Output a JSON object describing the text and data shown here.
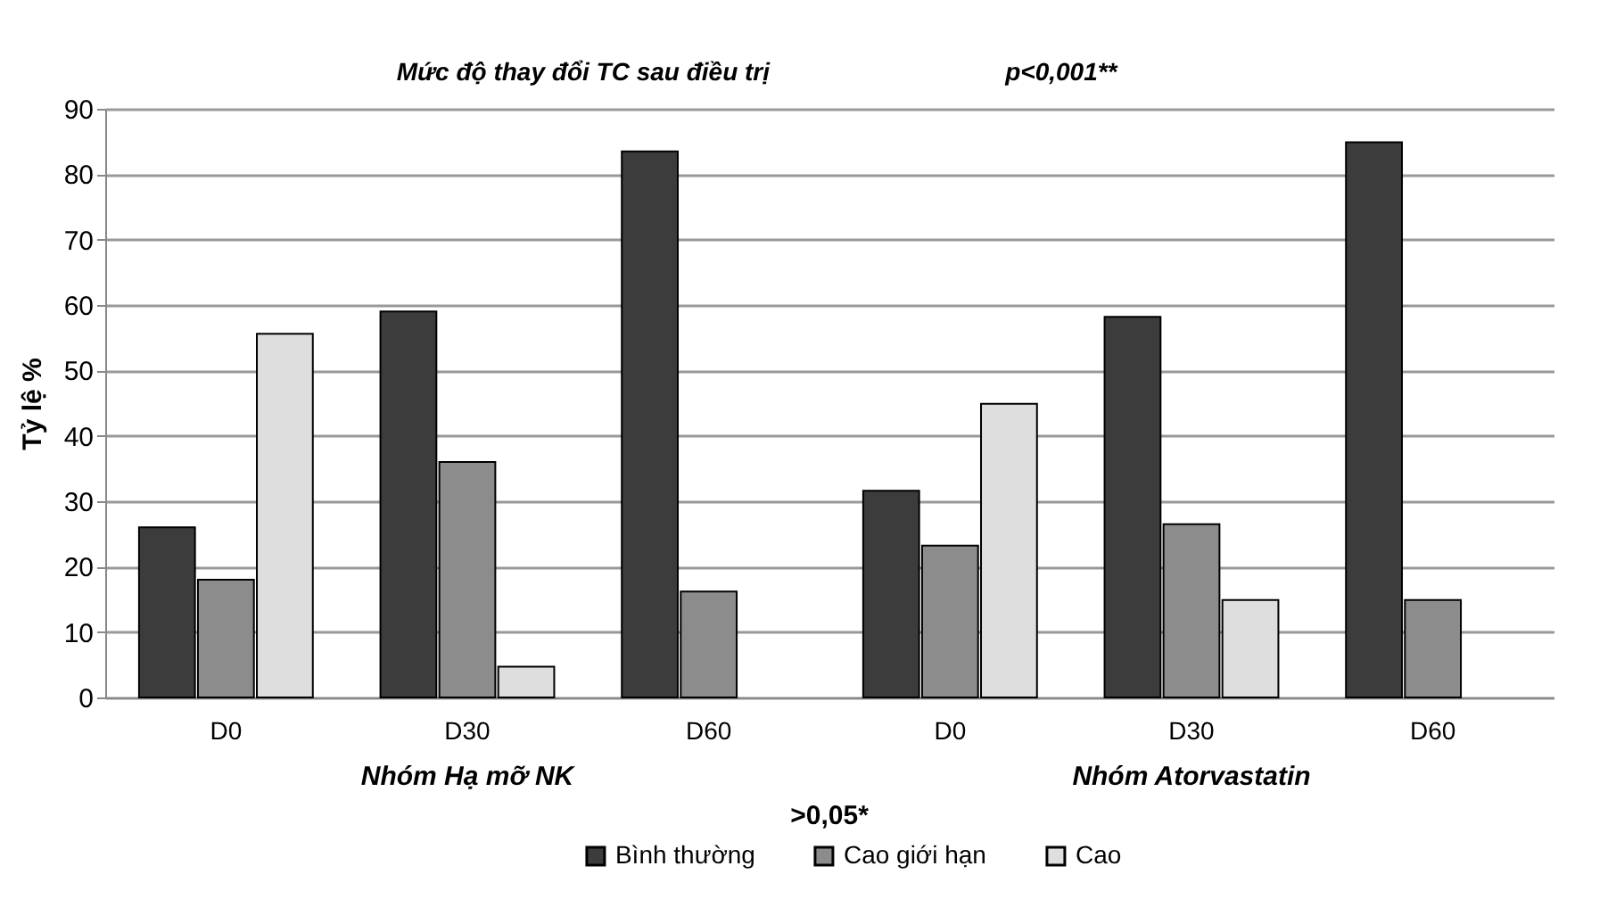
{
  "chart_data": {
    "type": "bar",
    "title": "Mức độ thay đổi TC sau điều trị",
    "ylabel": "Tỷ lệ %",
    "categories": [
      "D0",
      "D30",
      "D60",
      "D0",
      "D30",
      "D60"
    ],
    "series": [
      {
        "name": "Bình thường",
        "color": "#3c3c3c",
        "values": [
          26.0,
          59.0,
          83.5,
          31.6,
          58.2,
          84.9
        ]
      },
      {
        "name": "Cao giới hạn",
        "color": "#8c8c8c",
        "values": [
          18.0,
          36.0,
          16.2,
          23.2,
          26.5,
          14.9
        ]
      },
      {
        "name": "Cao",
        "color": "#dedede",
        "values": [
          55.6,
          4.7,
          null,
          44.9,
          14.9,
          null
        ]
      }
    ],
    "ylim": [
      0,
      90
    ],
    "yticks": [
      0,
      10,
      20,
      30,
      40,
      50,
      60,
      70,
      80,
      90
    ],
    "grid": "y",
    "legend": "bottom",
    "annotations": [
      "p<0,001**",
      "Nhóm Hạ mỡ NK",
      "Nhóm Atorvastatin",
      ">0,05*"
    ]
  }
}
